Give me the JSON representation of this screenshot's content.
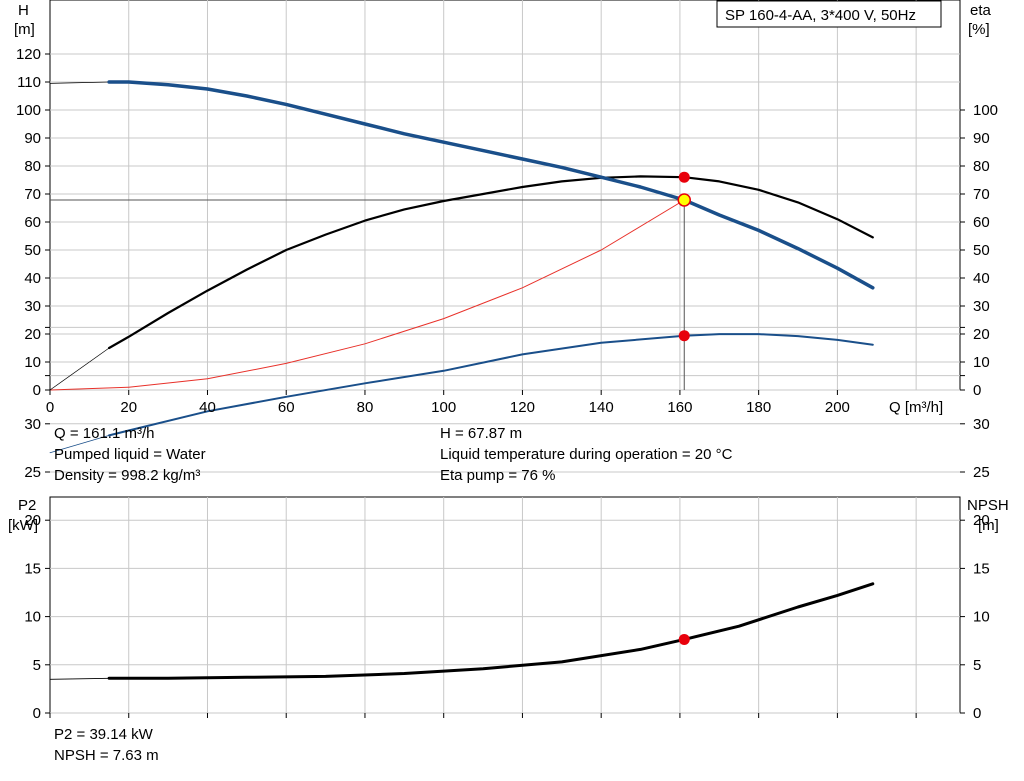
{
  "pump_label": "SP 160-4-AA, 3*400 V, 50Hz",
  "top_chart": {
    "y_left_label": [
      "H",
      "[m]"
    ],
    "y_right_label": [
      "eta",
      "[%]"
    ],
    "x_label": "Q [m³/h]",
    "x_ticks": [
      0,
      20,
      40,
      60,
      80,
      100,
      120,
      140,
      160,
      180,
      200
    ],
    "y_left_ticks": [
      0,
      10,
      20,
      30,
      40,
      50,
      60,
      70,
      80,
      90,
      100,
      110,
      120
    ],
    "y_right_ticks": [
      0,
      10,
      20,
      30,
      40,
      50,
      60,
      70,
      80,
      90,
      100
    ],
    "info_left": [
      "Q = 161.1 m³/h",
      "Pumped liquid = Water",
      "Density = 998.2 kg/m³"
    ],
    "info_right": [
      "H = 67.87 m",
      "Liquid temperature during operation = 20 °C",
      "Eta pump = 76 %"
    ]
  },
  "bottom_chart": {
    "y_left_label": [
      "P2",
      "[kW]"
    ],
    "y_right_label": [
      "NPSH",
      "[m]"
    ],
    "y_left_ticks": [
      0,
      5,
      10,
      15,
      20,
      25,
      30
    ],
    "y_right_ticks": [
      0,
      5,
      10,
      15,
      20,
      25,
      30
    ],
    "info": [
      "P2 = 39.14 kW",
      "NPSH = 7.63 m"
    ]
  },
  "colors": {
    "head_curve": "#1a4f8a",
    "eta_curve": "#000000",
    "system_curve": "#e8312a",
    "marker": "#e8000b",
    "duty_point": "#ffff00",
    "grid": "#c8c8c8"
  },
  "chart_data": [
    {
      "type": "line",
      "x_label": "Q [m³/h]",
      "xlim": [
        0,
        229
      ],
      "ylim": [
        0,
        125
      ],
      "series": [
        {
          "name": "H",
          "axis": "left",
          "x": [
            0,
            15,
            20,
            30,
            40,
            50,
            60,
            70,
            80,
            90,
            100,
            110,
            120,
            130,
            140,
            150,
            161.1,
            170,
            180,
            190,
            200,
            209
          ],
          "y": [
            109.5,
            110,
            110,
            109,
            107.5,
            105,
            102,
            98.5,
            95,
            91.5,
            88.5,
            85.5,
            82.5,
            79.5,
            76,
            72.5,
            67.87,
            62.5,
            57,
            50.5,
            43.5,
            36.5
          ]
        },
        {
          "name": "eta",
          "axis": "right",
          "x": [
            15,
            20,
            30,
            40,
            50,
            60,
            70,
            80,
            90,
            100,
            110,
            120,
            130,
            140,
            150,
            161.1,
            170,
            180,
            190,
            200,
            209
          ],
          "y": [
            15,
            19,
            27.5,
            35.5,
            43,
            50,
            55.5,
            60.5,
            64.5,
            67.5,
            70,
            72.5,
            74.5,
            75.8,
            76.3,
            76,
            74.5,
            71.5,
            67,
            61,
            54.5
          ]
        },
        {
          "name": "eta (extrapolated)",
          "axis": "right",
          "x": [
            0,
            15
          ],
          "y": [
            0,
            15
          ]
        },
        {
          "name": "system curve",
          "axis": "left",
          "x": [
            0,
            20,
            40,
            60,
            80,
            100,
            120,
            140,
            161.1
          ],
          "y": [
            0,
            1,
            4,
            9.5,
            16.5,
            25.5,
            36.5,
            50,
            67.87
          ]
        }
      ],
      "duty_point": {
        "Q": 161.1,
        "H": 67.87,
        "eta": 76
      }
    },
    {
      "type": "line",
      "xlim": [
        0,
        229
      ],
      "ylim": [
        0,
        40
      ],
      "series": [
        {
          "name": "P2",
          "axis": "left",
          "x": [
            15,
            20,
            40,
            60,
            80,
            100,
            120,
            140,
            161.1,
            170,
            180,
            190,
            200,
            209
          ],
          "y": [
            28.8,
            29.3,
            31.3,
            32.8,
            34.2,
            35.5,
            37.2,
            38.4,
            39.14,
            39.3,
            39.3,
            39.1,
            38.7,
            38.2
          ]
        },
        {
          "name": "P2 (extrapolated)",
          "axis": "left",
          "x": [
            0,
            15
          ],
          "y": [
            27,
            28.8
          ]
        },
        {
          "name": "NPSH",
          "axis": "right",
          "x": [
            15,
            30,
            50,
            70,
            90,
            110,
            130,
            150,
            161.1,
            175,
            190,
            200,
            209
          ],
          "y": [
            3.6,
            3.6,
            3.7,
            3.8,
            4.1,
            4.6,
            5.3,
            6.6,
            7.63,
            9,
            11,
            12.2,
            13.4
          ]
        },
        {
          "name": "NPSH (extrapolated)",
          "axis": "right",
          "x": [
            0,
            15
          ],
          "y": [
            3.5,
            3.6
          ]
        }
      ],
      "duty_point": {
        "Q": 161.1,
        "P2": 39.14,
        "NPSH": 7.63
      }
    }
  ]
}
